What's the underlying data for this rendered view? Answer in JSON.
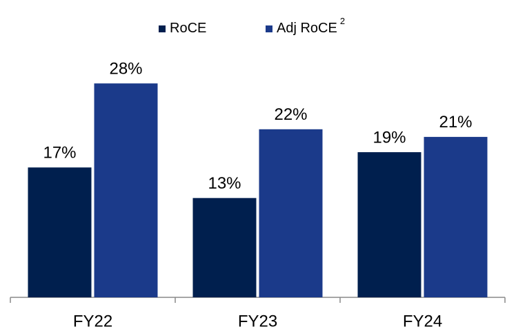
{
  "chart_data": {
    "type": "bar",
    "categories": [
      "FY22",
      "FY23",
      "FY24"
    ],
    "series": [
      {
        "name": "RoCE",
        "color": "#001f4e",
        "values": [
          17,
          13,
          19
        ],
        "value_labels": [
          "17%",
          "13%",
          "19%"
        ]
      },
      {
        "name": "Adj RoCE",
        "superscript": "2",
        "color": "#1b3a8a",
        "values": [
          28,
          22,
          21
        ],
        "value_labels": [
          "28%",
          "22%",
          "21%"
        ]
      }
    ]
  }
}
